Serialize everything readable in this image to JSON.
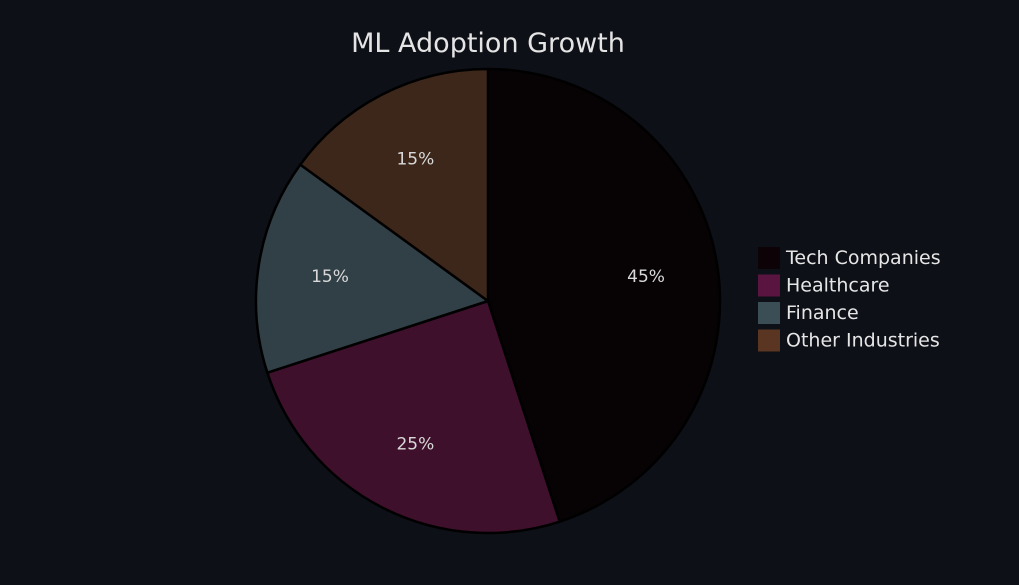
{
  "chart_data": {
    "type": "pie",
    "title": "ML Adoption Growth",
    "categories": [
      "Tech Companies",
      "Healthcare",
      "Finance",
      "Other Industries"
    ],
    "values": [
      45,
      25,
      15,
      15
    ],
    "labels": [
      "45%",
      "25%",
      "15%",
      "15%"
    ],
    "colors": [
      "#070305",
      "#3e102b",
      "#313f46",
      "#3d271b"
    ],
    "legend_colors": [
      "#0d0307",
      "#5a1440",
      "#3b4d55",
      "#5a3522"
    ],
    "start_angle": "12 o'clock",
    "direction": "clockwise",
    "legend_position": "right"
  },
  "colors": {
    "background": "#0d1017",
    "slice_border": "#000000",
    "title_text": "#e4e4e4",
    "label_text": "#d9d9d9"
  }
}
